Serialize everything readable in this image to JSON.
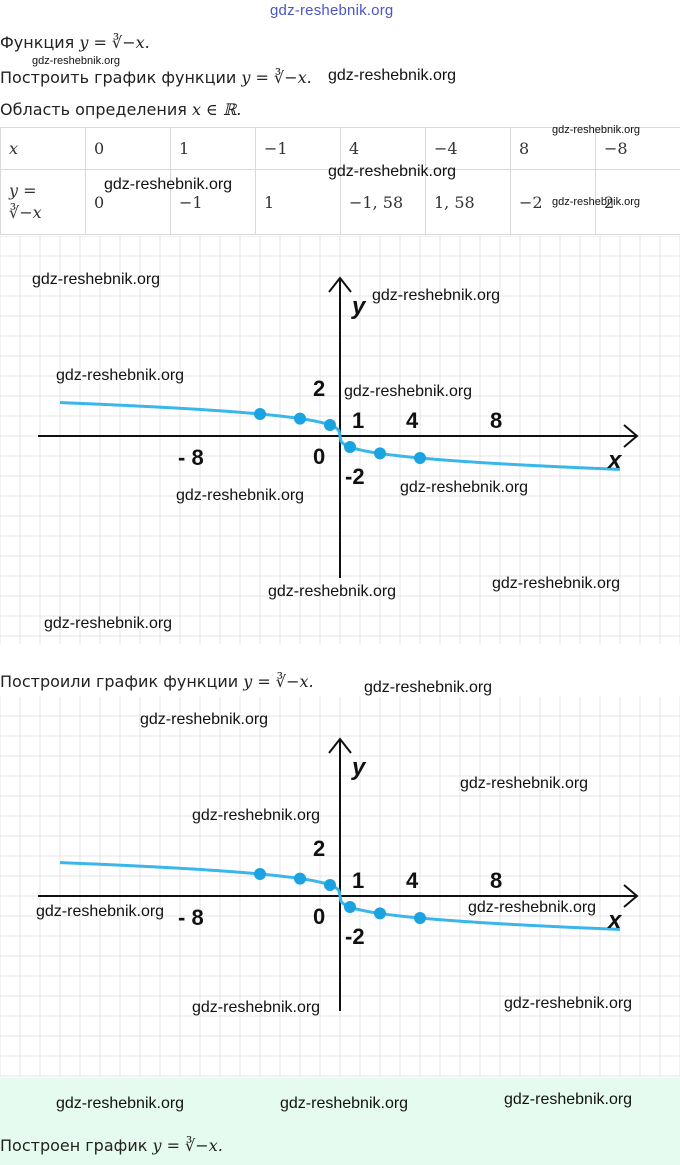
{
  "watermark_top": "gdz-reshebnik.org",
  "line_function": {
    "prefix": "Функция",
    "formula": "y = ∛−x."
  },
  "line_build": {
    "prefix": "Построить график функции",
    "formula": "y = ∛−x."
  },
  "line_domain": {
    "prefix": "Область определения",
    "formula": "x ∈ ℝ."
  },
  "table": {
    "row_x": {
      "label": "x",
      "values": [
        "0",
        "1",
        "−1",
        "4",
        "−4",
        "8",
        "−8"
      ]
    },
    "row_y": {
      "label_top": "y =",
      "label_bottom": "∛−x",
      "values": [
        "0",
        "−1",
        "1",
        "−1, 58",
        "1, 58",
        "−2",
        "2"
      ]
    }
  },
  "graph_labels": {
    "y_axis": "y",
    "x_axis": "x",
    "origin": "0",
    "tick_2": "2",
    "tick_1": "1",
    "tick_4": "4",
    "tick_8": "8",
    "tick_m8": "- 8",
    "tick_m2": "-2"
  },
  "line_built": {
    "prefix": "Построили график функции",
    "formula": "y = ∛−x."
  },
  "line_result": {
    "prefix": "Построен график",
    "formula": "y = ∛−x."
  },
  "watermark": "gdz-reshebnik.org",
  "chart_data": {
    "type": "line",
    "title": "",
    "xlabel": "x",
    "ylabel": "y",
    "x": [
      -8,
      -4,
      -1,
      0,
      1,
      4,
      8
    ],
    "series": [
      {
        "values": [
          2,
          1.58,
          1,
          0,
          -1,
          -1.58,
          -2
        ]
      }
    ],
    "grid": true,
    "colors": {
      "curve": "#3bb6ea",
      "point": "#1aa3e0",
      "axes": "#111111",
      "grid": "#e4e4e4"
    }
  }
}
